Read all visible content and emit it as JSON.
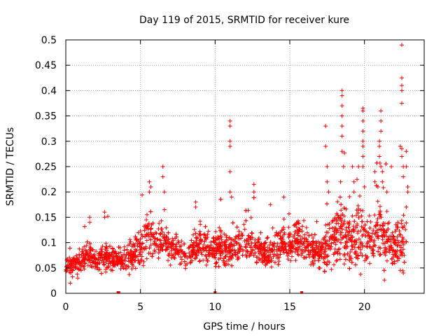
{
  "chart_data": {
    "type": "scatter",
    "title": "Day 119 of 2015, SRMTID for receiver kure",
    "xlabel": "GPS time / hours",
    "ylabel": "SRMTID / TECUs",
    "xlim": [
      0,
      24
    ],
    "ylim": [
      0,
      0.5
    ],
    "x_ticks": [
      0,
      5,
      10,
      15,
      20
    ],
    "x_tick_labels": [
      "0",
      "5",
      "10",
      "15",
      "20"
    ],
    "y_ticks": [
      0,
      0.05,
      0.1,
      0.15,
      0.2,
      0.25,
      0.3,
      0.35,
      0.4,
      0.45,
      0.5
    ],
    "y_tick_labels": [
      "0",
      "0.05",
      "0.1",
      "0.15",
      "0.2",
      "0.25",
      "0.3",
      "0.35",
      "0.4",
      "0.45",
      "0.5"
    ],
    "grid": true,
    "marker": "plus",
    "color": "#ff0000",
    "series_name": "SRMTID",
    "bulk_profile": [
      [
        0.0,
        0.055,
        0.012
      ],
      [
        0.5,
        0.055,
        0.012
      ],
      [
        1.0,
        0.065,
        0.018
      ],
      [
        1.5,
        0.08,
        0.02
      ],
      [
        2.0,
        0.065,
        0.015
      ],
      [
        2.5,
        0.075,
        0.02
      ],
      [
        3.0,
        0.07,
        0.018
      ],
      [
        3.5,
        0.065,
        0.015
      ],
      [
        4.0,
        0.07,
        0.018
      ],
      [
        4.5,
        0.075,
        0.02
      ],
      [
        5.0,
        0.09,
        0.025
      ],
      [
        5.5,
        0.12,
        0.035
      ],
      [
        6.0,
        0.11,
        0.03
      ],
      [
        6.5,
        0.11,
        0.03
      ],
      [
        7.0,
        0.09,
        0.02
      ],
      [
        7.5,
        0.08,
        0.018
      ],
      [
        8.0,
        0.075,
        0.015
      ],
      [
        8.5,
        0.085,
        0.02
      ],
      [
        9.0,
        0.1,
        0.03
      ],
      [
        9.5,
        0.095,
        0.025
      ],
      [
        10.0,
        0.085,
        0.022
      ],
      [
        10.5,
        0.09,
        0.022
      ],
      [
        11.0,
        0.085,
        0.02
      ],
      [
        11.5,
        0.09,
        0.022
      ],
      [
        12.0,
        0.095,
        0.025
      ],
      [
        12.5,
        0.1,
        0.028
      ],
      [
        13.0,
        0.085,
        0.02
      ],
      [
        13.5,
        0.08,
        0.02
      ],
      [
        14.0,
        0.09,
        0.025
      ],
      [
        14.5,
        0.1,
        0.025
      ],
      [
        15.0,
        0.095,
        0.025
      ],
      [
        15.5,
        0.11,
        0.03
      ],
      [
        16.0,
        0.1,
        0.025
      ],
      [
        16.5,
        0.085,
        0.02
      ],
      [
        17.0,
        0.08,
        0.02
      ],
      [
        17.5,
        0.09,
        0.03
      ],
      [
        18.0,
        0.11,
        0.04
      ],
      [
        18.5,
        0.12,
        0.045
      ],
      [
        19.0,
        0.11,
        0.04
      ],
      [
        19.5,
        0.12,
        0.045
      ],
      [
        20.0,
        0.11,
        0.04
      ],
      [
        20.5,
        0.1,
        0.035
      ],
      [
        21.0,
        0.13,
        0.05
      ],
      [
        21.5,
        0.1,
        0.035
      ],
      [
        22.0,
        0.09,
        0.03
      ],
      [
        22.5,
        0.1,
        0.04
      ],
      [
        22.8,
        0.1,
        0.04
      ]
    ],
    "notable_points": [
      [
        0.3,
        0.02
      ],
      [
        0.8,
        0.03
      ],
      [
        1.6,
        0.15
      ],
      [
        1.6,
        0.14
      ],
      [
        2.6,
        0.16
      ],
      [
        2.6,
        0.15
      ],
      [
        5.6,
        0.22
      ],
      [
        5.6,
        0.2
      ],
      [
        5.7,
        0.21
      ],
      [
        6.5,
        0.25
      ],
      [
        6.5,
        0.23
      ],
      [
        6.6,
        0.2
      ],
      [
        6.6,
        0.165
      ],
      [
        8.7,
        0.18
      ],
      [
        8.7,
        0.17
      ],
      [
        9.9,
        0.11
      ],
      [
        11.0,
        0.34
      ],
      [
        11.0,
        0.33
      ],
      [
        11.0,
        0.3
      ],
      [
        11.0,
        0.29
      ],
      [
        11.0,
        0.24
      ],
      [
        11.0,
        0.2
      ],
      [
        11.1,
        0.19
      ],
      [
        12.6,
        0.215
      ],
      [
        12.6,
        0.2
      ],
      [
        13.7,
        0.175
      ],
      [
        14.6,
        0.19
      ],
      [
        17.4,
        0.33
      ],
      [
        17.4,
        0.29
      ],
      [
        17.5,
        0.25
      ],
      [
        17.5,
        0.22
      ],
      [
        17.6,
        0.2
      ],
      [
        18.5,
        0.4
      ],
      [
        18.5,
        0.39
      ],
      [
        18.5,
        0.37
      ],
      [
        18.5,
        0.35
      ],
      [
        18.5,
        0.33
      ],
      [
        18.5,
        0.31
      ],
      [
        18.5,
        0.28
      ],
      [
        18.6,
        0.25
      ],
      [
        18.4,
        0.22
      ],
      [
        19.2,
        0.25
      ],
      [
        19.3,
        0.22
      ],
      [
        19.3,
        0.2
      ],
      [
        19.6,
        0.25
      ],
      [
        19.9,
        0.365
      ],
      [
        19.9,
        0.36
      ],
      [
        19.9,
        0.34
      ],
      [
        19.9,
        0.32
      ],
      [
        19.9,
        0.3
      ],
      [
        19.9,
        0.29
      ],
      [
        19.9,
        0.27
      ],
      [
        19.9,
        0.25
      ],
      [
        20.0,
        0.21
      ],
      [
        20.7,
        0.24
      ],
      [
        20.7,
        0.22
      ],
      [
        21.1,
        0.36
      ],
      [
        21.1,
        0.34
      ],
      [
        21.1,
        0.32
      ],
      [
        21.0,
        0.3
      ],
      [
        21.0,
        0.29
      ],
      [
        21.0,
        0.27
      ],
      [
        21.1,
        0.25
      ],
      [
        21.2,
        0.24
      ],
      [
        21.2,
        0.22
      ],
      [
        20.9,
        0.21
      ],
      [
        21.5,
        0.2
      ],
      [
        21.8,
        0.25
      ],
      [
        22.5,
        0.49
      ],
      [
        22.5,
        0.425
      ],
      [
        22.5,
        0.41
      ],
      [
        22.5,
        0.4
      ],
      [
        22.5,
        0.375
      ],
      [
        22.4,
        0.29
      ],
      [
        22.5,
        0.285
      ],
      [
        22.5,
        0.27
      ],
      [
        22.6,
        0.25
      ],
      [
        22.6,
        0.23
      ],
      [
        22.8,
        0.28
      ],
      [
        22.8,
        0.25
      ],
      [
        22.9,
        0.21
      ],
      [
        22.9,
        0.2
      ],
      [
        22.8,
        0.17
      ],
      [
        22.6,
        0.04
      ],
      [
        22.4,
        0.045
      ]
    ],
    "baseline_points": [
      [
        3.5,
        0.0
      ],
      [
        3.55,
        0.0
      ],
      [
        10.0,
        0.0
      ],
      [
        15.8,
        0.0
      ]
    ],
    "estimated_point_count": 2400
  }
}
